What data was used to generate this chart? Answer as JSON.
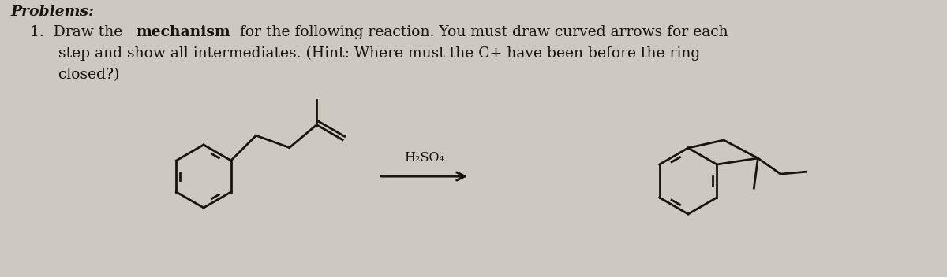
{
  "bg_color": "#cdc8c0",
  "text_color": "#1a1410",
  "problems_label": "Problems:",
  "line2a": "1.  Draw the ",
  "line2b": "mechanism",
  "line2c": " for the following reaction. You must draw curved arrows for each",
  "line3": "      step and show all intermediates. (Hint: Where must the C+ have been before the ring",
  "line4": "      closed?)",
  "reagent": "H₂SO₄",
  "font_size": 13.5,
  "lw": 2.0
}
